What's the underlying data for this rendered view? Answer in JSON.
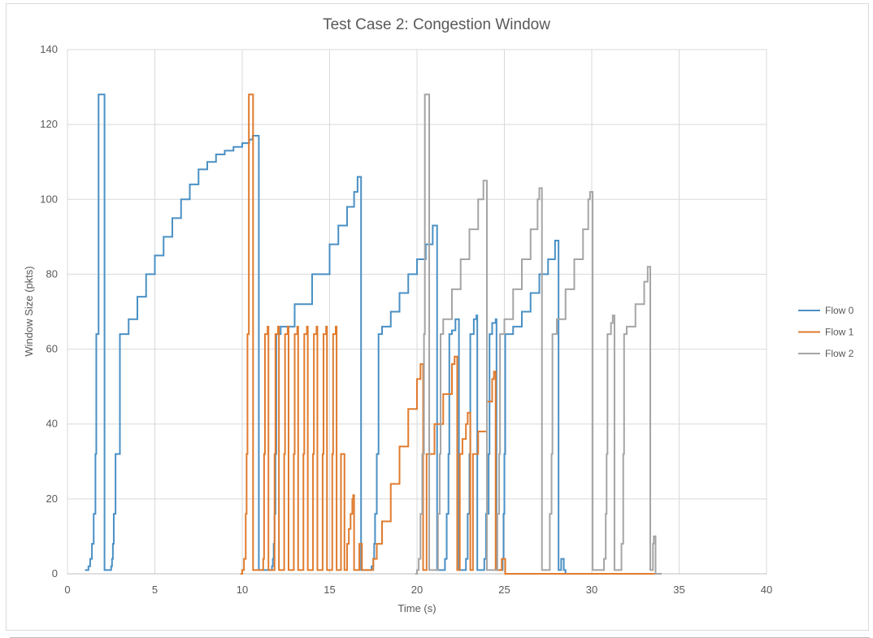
{
  "chart_data": {
    "type": "line",
    "title": "Test Case 2: Congestion Window",
    "xlabel": "Time (s)",
    "ylabel": "Window Size (pkts)",
    "xlim": [
      0,
      40
    ],
    "ylim": [
      0,
      140
    ],
    "xticks": [
      0,
      5,
      10,
      15,
      20,
      25,
      30,
      35,
      40
    ],
    "yticks": [
      0,
      20,
      40,
      60,
      80,
      100,
      120,
      140
    ],
    "grid": true,
    "legend_position": "right",
    "series": [
      {
        "name": "Flow 0",
        "color": "#4a90c4",
        "points": [
          [
            1.0,
            1
          ],
          [
            1.2,
            2
          ],
          [
            1.3,
            4
          ],
          [
            1.4,
            8
          ],
          [
            1.5,
            16
          ],
          [
            1.6,
            32
          ],
          [
            1.65,
            64
          ],
          [
            1.75,
            64
          ],
          [
            1.78,
            128
          ],
          [
            2.1,
            128
          ],
          [
            2.12,
            1
          ],
          [
            2.4,
            1
          ],
          [
            2.5,
            2
          ],
          [
            2.55,
            4
          ],
          [
            2.6,
            8
          ],
          [
            2.65,
            16
          ],
          [
            2.75,
            32
          ],
          [
            2.95,
            32
          ],
          [
            3.0,
            64
          ],
          [
            3.5,
            68
          ],
          [
            4.0,
            74
          ],
          [
            4.5,
            80
          ],
          [
            5.0,
            85
          ],
          [
            5.5,
            90
          ],
          [
            6.0,
            95
          ],
          [
            6.5,
            100
          ],
          [
            7.0,
            104
          ],
          [
            7.5,
            108
          ],
          [
            8.0,
            110
          ],
          [
            8.5,
            112
          ],
          [
            9.0,
            113
          ],
          [
            9.5,
            114
          ],
          [
            10.0,
            115
          ],
          [
            10.4,
            116
          ],
          [
            10.6,
            117
          ],
          [
            10.9,
            117
          ],
          [
            10.95,
            1
          ],
          [
            11.6,
            1
          ],
          [
            11.7,
            2
          ],
          [
            11.75,
            4
          ],
          [
            11.8,
            8
          ],
          [
            11.85,
            16
          ],
          [
            11.9,
            32
          ],
          [
            11.95,
            64
          ],
          [
            12.2,
            66
          ],
          [
            13.0,
            72
          ],
          [
            14.0,
            80
          ],
          [
            15.0,
            88
          ],
          [
            15.5,
            93
          ],
          [
            16.0,
            98
          ],
          [
            16.4,
            102
          ],
          [
            16.6,
            106
          ],
          [
            16.75,
            106
          ],
          [
            16.8,
            1
          ],
          [
            17.3,
            1
          ],
          [
            17.4,
            2
          ],
          [
            17.5,
            4
          ],
          [
            17.55,
            8
          ],
          [
            17.6,
            16
          ],
          [
            17.7,
            32
          ],
          [
            17.8,
            64
          ],
          [
            18.0,
            66
          ],
          [
            18.5,
            70
          ],
          [
            19.0,
            75
          ],
          [
            19.5,
            80
          ],
          [
            20.0,
            84
          ],
          [
            20.5,
            88
          ],
          [
            20.9,
            93
          ],
          [
            21.1,
            93
          ],
          [
            21.15,
            1
          ],
          [
            21.5,
            1
          ],
          [
            21.6,
            4
          ],
          [
            21.7,
            16
          ],
          [
            21.8,
            32
          ],
          [
            21.85,
            64
          ],
          [
            22.0,
            65
          ],
          [
            22.2,
            68
          ],
          [
            22.35,
            68
          ],
          [
            22.4,
            1
          ],
          [
            22.7,
            1
          ],
          [
            22.8,
            4
          ],
          [
            22.9,
            16
          ],
          [
            23.0,
            32
          ],
          [
            23.05,
            64
          ],
          [
            23.25,
            68
          ],
          [
            23.4,
            69
          ],
          [
            23.45,
            1
          ],
          [
            23.75,
            1
          ],
          [
            23.85,
            4
          ],
          [
            23.95,
            16
          ],
          [
            24.1,
            32
          ],
          [
            24.15,
            64
          ],
          [
            24.3,
            67
          ],
          [
            24.5,
            68
          ],
          [
            24.55,
            1
          ],
          [
            24.85,
            1
          ],
          [
            24.9,
            4
          ],
          [
            24.95,
            16
          ],
          [
            25.0,
            32
          ],
          [
            25.05,
            64
          ],
          [
            25.5,
            66
          ],
          [
            26.0,
            70
          ],
          [
            26.5,
            75
          ],
          [
            27.0,
            80
          ],
          [
            27.5,
            84
          ],
          [
            27.9,
            89
          ],
          [
            28.05,
            89
          ],
          [
            28.1,
            1
          ],
          [
            28.2,
            1
          ],
          [
            28.25,
            4
          ],
          [
            28.35,
            4
          ],
          [
            28.4,
            1
          ],
          [
            28.5,
            0
          ]
        ]
      },
      {
        "name": "Flow 1",
        "color": "#e07b2e",
        "points": [
          [
            9.9,
            0
          ],
          [
            10.0,
            1
          ],
          [
            10.1,
            4
          ],
          [
            10.2,
            16
          ],
          [
            10.25,
            32
          ],
          [
            10.3,
            64
          ],
          [
            10.35,
            64
          ],
          [
            10.38,
            128
          ],
          [
            10.6,
            128
          ],
          [
            10.62,
            1
          ],
          [
            11.1,
            1
          ],
          [
            11.2,
            4
          ],
          [
            11.25,
            32
          ],
          [
            11.3,
            64
          ],
          [
            11.45,
            66
          ],
          [
            11.5,
            1
          ],
          [
            11.8,
            1
          ],
          [
            11.85,
            32
          ],
          [
            11.9,
            64
          ],
          [
            12.05,
            66
          ],
          [
            12.1,
            1
          ],
          [
            12.35,
            1
          ],
          [
            12.4,
            32
          ],
          [
            12.45,
            64
          ],
          [
            12.6,
            66
          ],
          [
            12.65,
            1
          ],
          [
            12.9,
            1
          ],
          [
            12.95,
            32
          ],
          [
            13.0,
            64
          ],
          [
            13.15,
            66
          ],
          [
            13.2,
            1
          ],
          [
            13.45,
            1
          ],
          [
            13.5,
            32
          ],
          [
            13.55,
            64
          ],
          [
            13.7,
            66
          ],
          [
            13.75,
            1
          ],
          [
            14.0,
            1
          ],
          [
            14.05,
            32
          ],
          [
            14.1,
            64
          ],
          [
            14.25,
            66
          ],
          [
            14.3,
            1
          ],
          [
            14.55,
            1
          ],
          [
            14.6,
            32
          ],
          [
            14.65,
            64
          ],
          [
            14.8,
            66
          ],
          [
            14.85,
            1
          ],
          [
            15.1,
            1
          ],
          [
            15.15,
            32
          ],
          [
            15.2,
            64
          ],
          [
            15.35,
            66
          ],
          [
            15.4,
            1
          ],
          [
            15.6,
            1
          ],
          [
            15.65,
            32
          ],
          [
            15.8,
            32
          ],
          [
            15.85,
            1
          ],
          [
            15.95,
            1
          ],
          [
            16.0,
            8
          ],
          [
            16.1,
            12
          ],
          [
            16.2,
            16
          ],
          [
            16.3,
            20
          ],
          [
            16.35,
            21
          ],
          [
            16.4,
            1
          ],
          [
            16.6,
            1
          ],
          [
            16.7,
            8
          ],
          [
            16.8,
            8
          ],
          [
            16.85,
            1
          ],
          [
            17.3,
            1
          ],
          [
            17.5,
            4
          ],
          [
            17.7,
            8
          ],
          [
            18.0,
            14
          ],
          [
            18.5,
            24
          ],
          [
            19.0,
            34
          ],
          [
            19.5,
            44
          ],
          [
            20.0,
            52
          ],
          [
            20.2,
            56
          ],
          [
            20.3,
            56
          ],
          [
            20.35,
            1
          ],
          [
            20.5,
            1
          ],
          [
            20.55,
            32
          ],
          [
            21.0,
            40
          ],
          [
            21.5,
            48
          ],
          [
            22.0,
            56
          ],
          [
            22.15,
            58
          ],
          [
            22.25,
            58
          ],
          [
            22.3,
            1
          ],
          [
            22.4,
            1
          ],
          [
            22.45,
            32
          ],
          [
            22.6,
            36
          ],
          [
            22.8,
            40
          ],
          [
            22.9,
            43
          ],
          [
            23.0,
            43
          ],
          [
            23.05,
            1
          ],
          [
            23.15,
            1
          ],
          [
            23.2,
            32
          ],
          [
            23.5,
            38
          ],
          [
            24.0,
            46
          ],
          [
            24.3,
            52
          ],
          [
            24.4,
            54
          ],
          [
            24.45,
            54
          ],
          [
            24.5,
            1
          ],
          [
            24.8,
            1
          ],
          [
            24.85,
            4
          ],
          [
            25.0,
            4
          ],
          [
            25.05,
            0
          ],
          [
            33.7,
            0
          ]
        ]
      },
      {
        "name": "Flow 2",
        "color": "#a5a5a5",
        "points": [
          [
            19.9,
            0
          ],
          [
            20.0,
            1
          ],
          [
            20.1,
            4
          ],
          [
            20.2,
            16
          ],
          [
            20.3,
            32
          ],
          [
            20.4,
            64
          ],
          [
            20.45,
            128
          ],
          [
            20.65,
            128
          ],
          [
            20.7,
            1
          ],
          [
            21.1,
            1
          ],
          [
            21.2,
            16
          ],
          [
            21.3,
            32
          ],
          [
            21.35,
            64
          ],
          [
            21.5,
            68
          ],
          [
            22.0,
            76
          ],
          [
            22.5,
            84
          ],
          [
            23.0,
            92
          ],
          [
            23.5,
            100
          ],
          [
            23.8,
            105
          ],
          [
            23.95,
            105
          ],
          [
            24.0,
            1
          ],
          [
            24.5,
            1
          ],
          [
            24.6,
            16
          ],
          [
            24.7,
            32
          ],
          [
            24.75,
            64
          ],
          [
            25.0,
            68
          ],
          [
            25.5,
            76
          ],
          [
            26.0,
            84
          ],
          [
            26.5,
            92
          ],
          [
            26.9,
            100
          ],
          [
            27.0,
            103
          ],
          [
            27.1,
            103
          ],
          [
            27.15,
            1
          ],
          [
            27.5,
            1
          ],
          [
            27.6,
            16
          ],
          [
            27.7,
            32
          ],
          [
            27.75,
            64
          ],
          [
            28.0,
            68
          ],
          [
            28.5,
            76
          ],
          [
            29.0,
            84
          ],
          [
            29.5,
            92
          ],
          [
            29.8,
            100
          ],
          [
            29.9,
            102
          ],
          [
            30.0,
            102
          ],
          [
            30.05,
            1
          ],
          [
            30.6,
            1
          ],
          [
            30.7,
            4
          ],
          [
            30.8,
            16
          ],
          [
            30.85,
            32
          ],
          [
            30.9,
            64
          ],
          [
            31.1,
            67
          ],
          [
            31.2,
            69
          ],
          [
            31.25,
            69
          ],
          [
            31.3,
            1
          ],
          [
            31.6,
            1
          ],
          [
            31.7,
            8
          ],
          [
            31.8,
            32
          ],
          [
            31.85,
            64
          ],
          [
            32.0,
            66
          ],
          [
            32.5,
            72
          ],
          [
            33.0,
            78
          ],
          [
            33.2,
            82
          ],
          [
            33.3,
            82
          ],
          [
            33.35,
            1
          ],
          [
            33.45,
            1
          ],
          [
            33.5,
            8
          ],
          [
            33.55,
            10
          ],
          [
            33.6,
            10
          ],
          [
            33.65,
            0
          ],
          [
            34.0,
            0
          ]
        ]
      }
    ]
  }
}
